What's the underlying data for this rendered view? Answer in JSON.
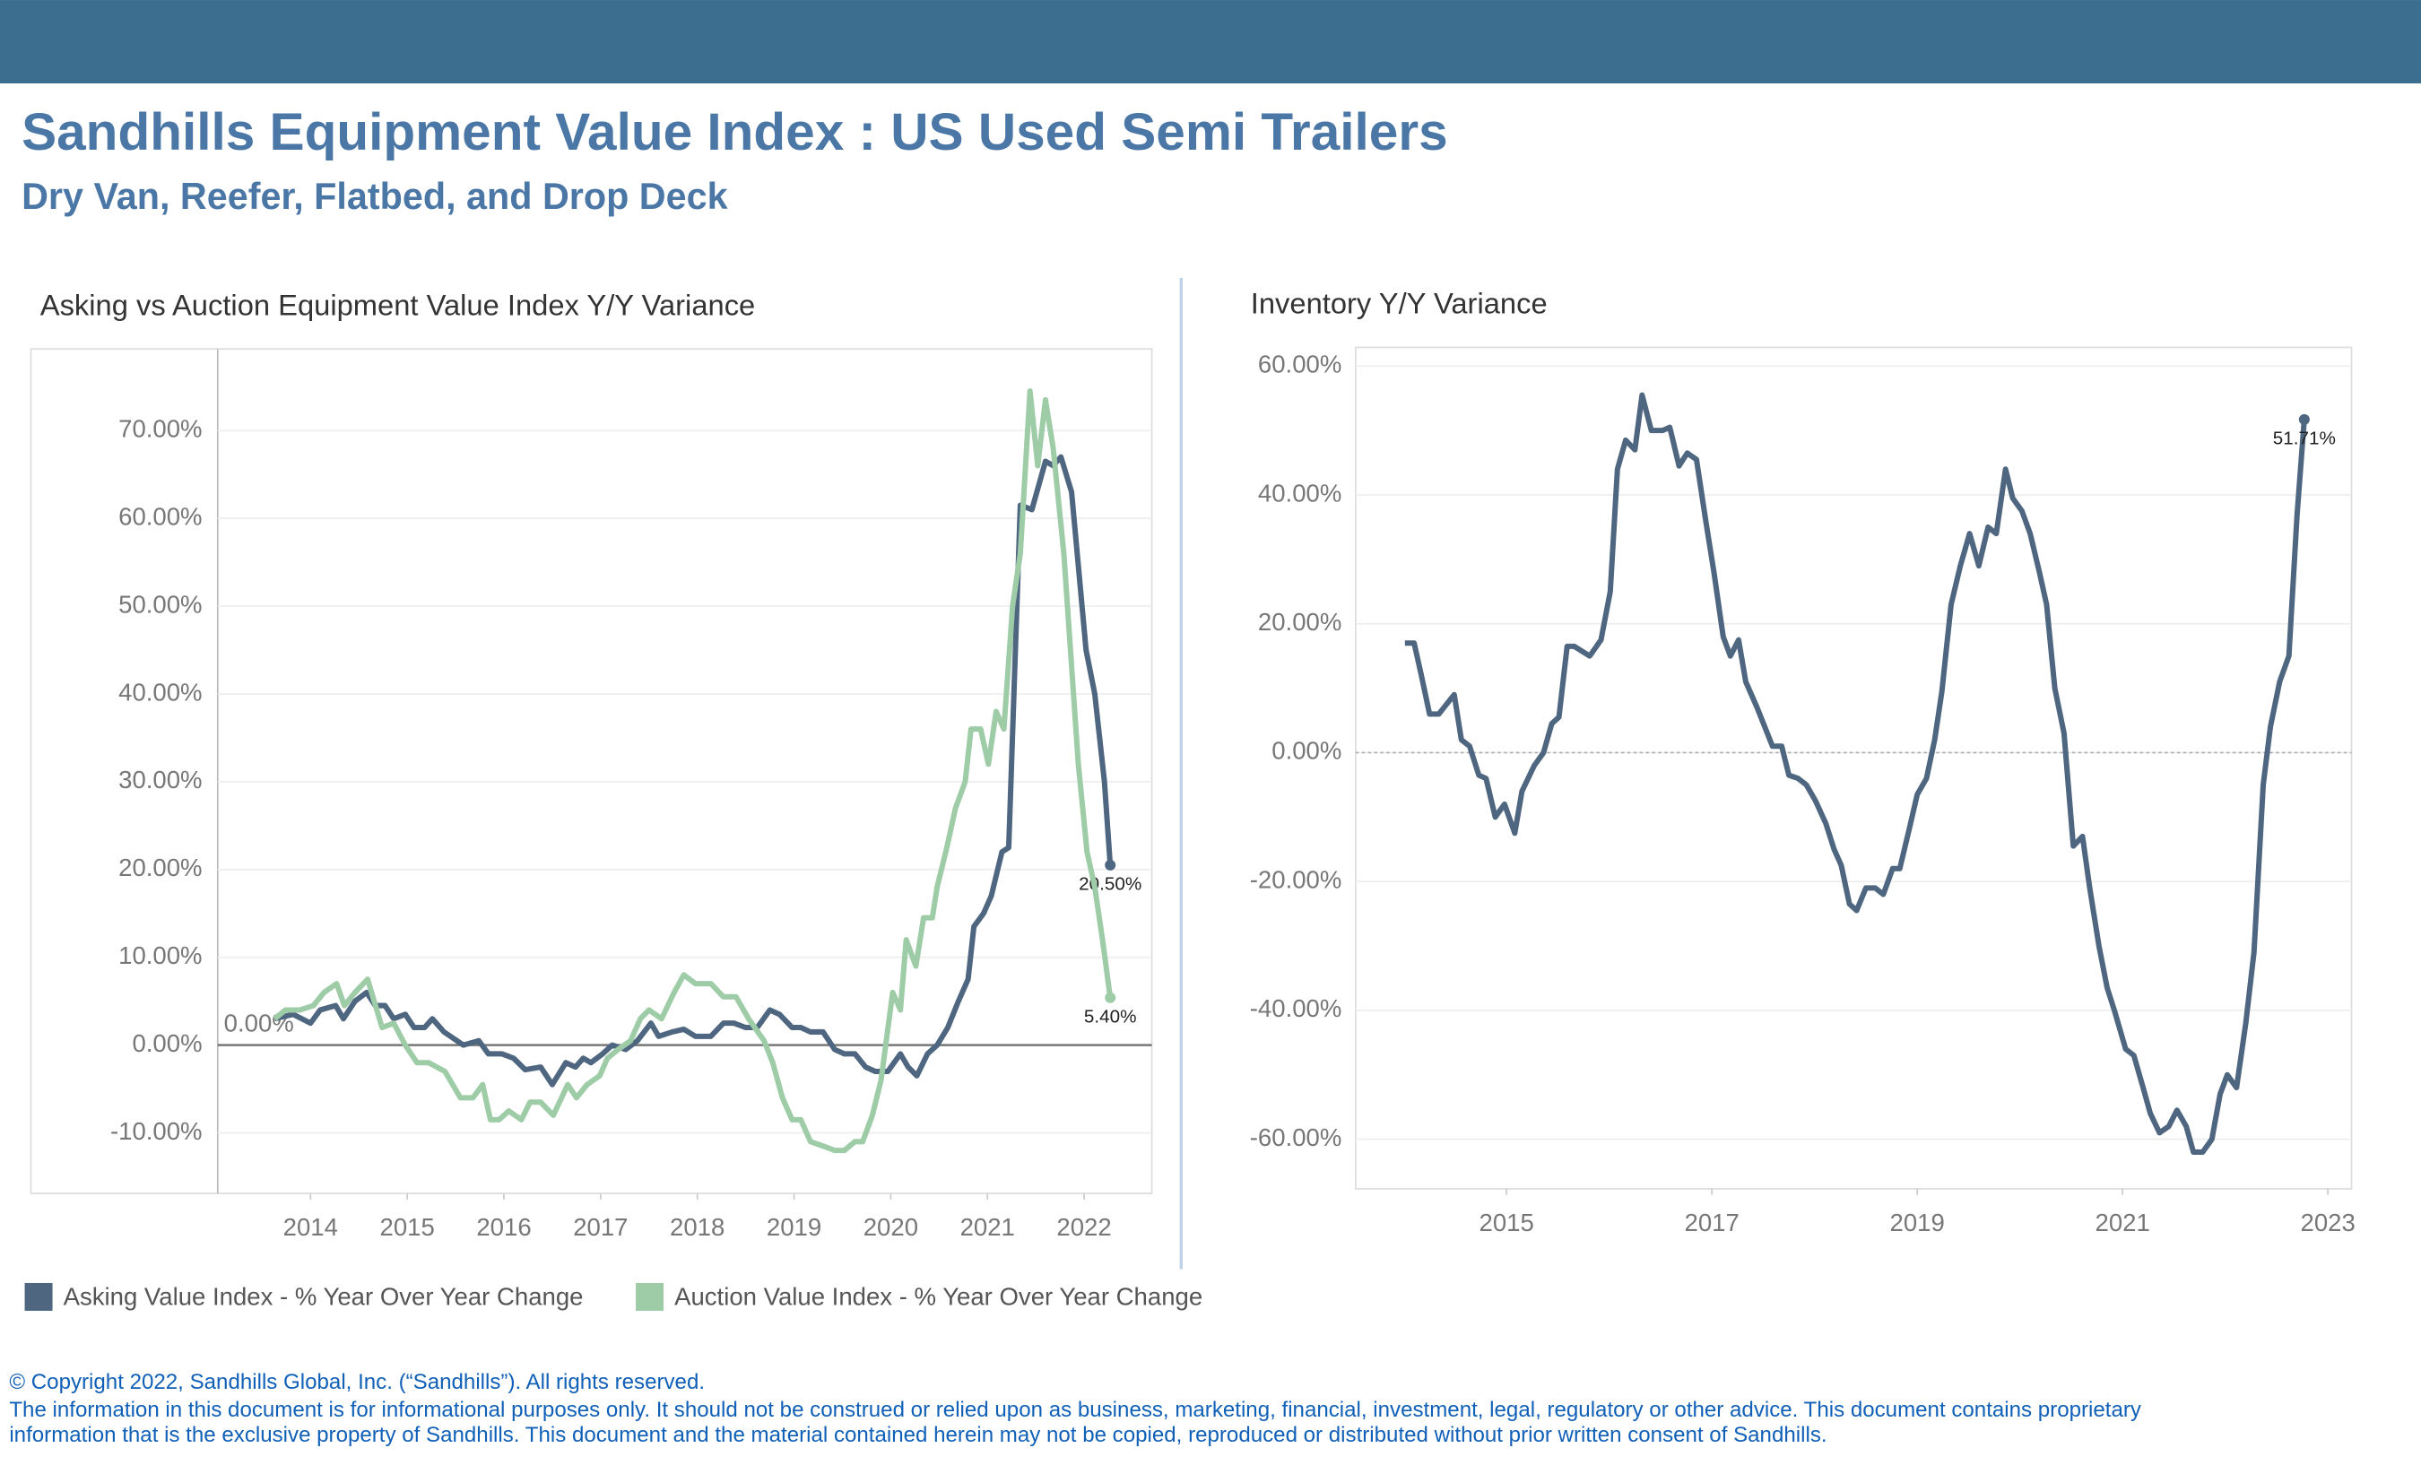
{
  "header": {
    "title": "Sandhills Equipment Value Index : US Used Semi Trailers",
    "subtitle": "Dry Van, Reefer, Flatbed, and Drop Deck"
  },
  "chart_data": [
    {
      "type": "line",
      "title": "Asking vs Auction Equipment Value Index Y/Y Variance",
      "xlim": [
        2013.04,
        2022.7
      ],
      "xticks": [
        2014,
        2015,
        2016,
        2017,
        2018,
        2019,
        2020,
        2021,
        2022
      ],
      "ylim": [
        -16.9,
        79.3
      ],
      "yticks": [
        {
          "value": -10,
          "label": "-10.00%"
        },
        {
          "value": 0,
          "label": "0.00%"
        },
        {
          "value": 10,
          "label": "10.00%"
        },
        {
          "value": 20,
          "label": "20.00%"
        },
        {
          "value": 30,
          "label": "30.00%"
        },
        {
          "value": 40,
          "label": "40.00%"
        },
        {
          "value": 50,
          "label": "50.00%"
        },
        {
          "value": 60,
          "label": "60.00%"
        },
        {
          "value": 70,
          "label": "70.00%"
        }
      ],
      "grid": true,
      "legend": "bottom",
      "reference_line": {
        "value": 0,
        "label": "0.00%",
        "style": "solid"
      },
      "series": [
        {
          "name": "Asking Value Index - % Year Over Year Change",
          "color": "#4e6680",
          "x": [
            2013.63,
            2013.82,
            2014.0,
            2014.1,
            2014.26,
            2014.34,
            2014.46,
            2014.58,
            2014.67,
            2014.77,
            2014.86,
            2014.98,
            2015.07,
            2015.18,
            2015.26,
            2015.38,
            2015.58,
            2015.74,
            2015.84,
            2015.98,
            2016.1,
            2016.22,
            2016.38,
            2016.5,
            2016.64,
            2016.74,
            2016.82,
            2016.9,
            2017.02,
            2017.12,
            2017.26,
            2017.38,
            2017.52,
            2017.6,
            2017.74,
            2017.86,
            2017.98,
            2018.14,
            2018.27,
            2018.38,
            2018.5,
            2018.62,
            2018.75,
            2018.85,
            2018.98,
            2019.07,
            2019.17,
            2019.3,
            2019.42,
            2019.52,
            2019.63,
            2019.74,
            2019.84,
            2019.97,
            2020.1,
            2020.18,
            2020.27,
            2020.38,
            2020.48,
            2020.59,
            2020.7,
            2020.8,
            2020.86,
            2020.96,
            2021.04,
            2021.15,
            2021.22,
            2021.34,
            2021.46,
            2021.6,
            2021.68,
            2021.76,
            2021.87,
            2022.02,
            2022.11,
            2022.21,
            2022.27
          ],
          "values": [
            3,
            3.5,
            2.5,
            4,
            4.5,
            3,
            5,
            6,
            4.5,
            4.5,
            3,
            3.5,
            2,
            2,
            3,
            1.5,
            0,
            0.5,
            -1,
            -1,
            -1.5,
            -2.8,
            -2.5,
            -4.5,
            -2,
            -2.5,
            -1.5,
            -2,
            -1,
            0,
            -0.5,
            0.5,
            2.5,
            1,
            1.5,
            1.8,
            1,
            1,
            2.5,
            2.5,
            2,
            2,
            4,
            3.5,
            2,
            2,
            1.5,
            1.5,
            -0.5,
            -1,
            -1,
            -2.5,
            -3,
            -3,
            -1,
            -2.5,
            -3.5,
            -1,
            0,
            2,
            5,
            7.5,
            13.5,
            15,
            17,
            22,
            22.5,
            61.5,
            61,
            66.5,
            66,
            67,
            63,
            45,
            40,
            30,
            20.5
          ],
          "value_labels": [
            null,
            null,
            null,
            null,
            null,
            null,
            null,
            null,
            null,
            null,
            null,
            null,
            null,
            null,
            null,
            null,
            null,
            null,
            null,
            null,
            null,
            null,
            null,
            null,
            null,
            null,
            null,
            null,
            null,
            null,
            null,
            null,
            null,
            null,
            null,
            null,
            null,
            null,
            null,
            null,
            null,
            null,
            null,
            null,
            null,
            null,
            null,
            null,
            null,
            null,
            null,
            null,
            null,
            null,
            null,
            null,
            null,
            null,
            null,
            null,
            null,
            null,
            null,
            null,
            null,
            null,
            null,
            null,
            null,
            null,
            null,
            null,
            null,
            null,
            null,
            null,
            "20.50%"
          ]
        },
        {
          "name": "Auction Value Index - % Year Over Year Change",
          "color": "#9dcca7",
          "x": [
            2013.63,
            2013.74,
            2013.89,
            2014.03,
            2014.14,
            2014.27,
            2014.35,
            2014.46,
            2014.59,
            2014.74,
            2014.86,
            2014.98,
            2015.1,
            2015.22,
            2015.39,
            2015.55,
            2015.68,
            2015.78,
            2015.86,
            2015.95,
            2016.05,
            2016.18,
            2016.27,
            2016.38,
            2016.51,
            2016.66,
            2016.75,
            2016.86,
            2016.99,
            2017.07,
            2017.18,
            2017.31,
            2017.41,
            2017.5,
            2017.63,
            2017.76,
            2017.86,
            2017.98,
            2018.14,
            2018.27,
            2018.4,
            2018.53,
            2018.69,
            2018.78,
            2018.88,
            2018.98,
            2019.07,
            2019.17,
            2019.3,
            2019.42,
            2019.52,
            2019.63,
            2019.71,
            2019.81,
            2019.9,
            2020.02,
            2020.1,
            2020.16,
            2020.26,
            2020.34,
            2020.43,
            2020.48,
            2020.58,
            2020.67,
            2020.77,
            2020.83,
            2020.93,
            2021.01,
            2021.09,
            2021.17,
            2021.26,
            2021.34,
            2021.44,
            2021.52,
            2021.6,
            2021.68,
            2021.79,
            2021.94,
            2022.03,
            2022.11,
            2022.19,
            2022.27
          ],
          "values": [
            3,
            4,
            4,
            4.5,
            6,
            7,
            4.5,
            6,
            7.5,
            2,
            2.5,
            0,
            -2,
            -2,
            -3,
            -6,
            -6,
            -4.5,
            -8.5,
            -8.5,
            -7.5,
            -8.5,
            -6.5,
            -6.5,
            -8,
            -4.5,
            -6,
            -4.5,
            -3.5,
            -1.5,
            -0.5,
            0.5,
            3,
            4,
            3,
            6,
            8,
            7,
            7,
            5.5,
            5.5,
            3,
            0.5,
            -2,
            -6,
            -8.5,
            -8.5,
            -11,
            -11.5,
            -12,
            -12,
            -11,
            -11,
            -8,
            -4,
            6,
            4,
            12,
            9,
            14.5,
            14.5,
            18,
            22.5,
            27,
            30,
            36,
            36,
            32,
            38,
            36,
            50,
            56,
            74.5,
            66,
            73.5,
            68,
            56,
            32,
            22,
            18,
            12,
            5.4
          ],
          "value_labels": [
            null,
            null,
            null,
            null,
            null,
            null,
            null,
            null,
            null,
            null,
            null,
            null,
            null,
            null,
            null,
            null,
            null,
            null,
            null,
            null,
            null,
            null,
            null,
            null,
            null,
            null,
            null,
            null,
            null,
            null,
            null,
            null,
            null,
            null,
            null,
            null,
            null,
            null,
            null,
            null,
            null,
            null,
            null,
            null,
            null,
            null,
            null,
            null,
            null,
            null,
            null,
            null,
            null,
            null,
            null,
            null,
            null,
            null,
            null,
            null,
            null,
            null,
            null,
            null,
            null,
            null,
            null,
            null,
            null,
            null,
            null,
            null,
            null,
            null,
            null,
            null,
            null,
            null,
            null,
            null,
            null,
            "5.40%"
          ]
        }
      ]
    },
    {
      "type": "line",
      "title": "Inventory Y/Y Variance",
      "xlim": [
        2013.53,
        2023.23
      ],
      "xticks": [
        2015,
        2017,
        2019,
        2021,
        2023
      ],
      "ylim": [
        -67.7,
        62.9
      ],
      "yticks": [
        {
          "value": -60,
          "label": "-60.00%"
        },
        {
          "value": -40,
          "label": "-40.00%"
        },
        {
          "value": -20,
          "label": "-20.00%"
        },
        {
          "value": 0,
          "label": "0.00%"
        },
        {
          "value": 20,
          "label": "20.00%"
        },
        {
          "value": 40,
          "label": "40.00%"
        },
        {
          "value": 60,
          "label": "60.00%"
        }
      ],
      "grid": true,
      "reference_line": {
        "value": 0,
        "style": "dotted"
      },
      "series": [
        {
          "color": "#4e6680",
          "x": [
            2014.01,
            2014.1,
            2014.17,
            2014.25,
            2014.34,
            2014.49,
            2014.56,
            2014.64,
            2014.73,
            2014.8,
            2014.89,
            2014.98,
            2015.08,
            2015.15,
            2015.27,
            2015.36,
            2015.44,
            2015.51,
            2015.59,
            2015.66,
            2015.81,
            2015.92,
            2016.01,
            2016.08,
            2016.16,
            2016.25,
            2016.32,
            2016.41,
            2016.52,
            2016.59,
            2016.68,
            2016.76,
            2016.85,
            2016.94,
            2017.02,
            2017.11,
            2017.18,
            2017.26,
            2017.33,
            2017.44,
            2017.59,
            2017.68,
            2017.75,
            2017.84,
            2017.92,
            2018.01,
            2018.11,
            2018.19,
            2018.26,
            2018.34,
            2018.41,
            2018.5,
            2018.59,
            2018.67,
            2018.76,
            2018.83,
            2018.92,
            2019.0,
            2019.09,
            2019.17,
            2019.24,
            2019.33,
            2019.42,
            2019.51,
            2019.6,
            2019.69,
            2019.77,
            2019.86,
            2019.93,
            2020.02,
            2020.1,
            2020.19,
            2020.26,
            2020.34,
            2020.43,
            2020.52,
            2020.61,
            2020.68,
            2020.77,
            2020.85,
            2020.92,
            2021.03,
            2021.11,
            2021.2,
            2021.27,
            2021.36,
            2021.45,
            2021.53,
            2021.62,
            2021.69,
            2021.78,
            2021.87,
            2021.95,
            2022.02,
            2022.11,
            2022.2,
            2022.28,
            2022.37,
            2022.44,
            2022.53,
            2022.62,
            2022.7,
            2022.77
          ],
          "values": [
            17,
            17,
            12,
            6,
            6,
            9,
            2,
            1,
            -3.5,
            -4,
            -10,
            -8,
            -12.5,
            -6,
            -2,
            0,
            4.5,
            5.5,
            16.5,
            16.5,
            15,
            17.5,
            25,
            44,
            48.5,
            47,
            55.5,
            50,
            50,
            50.5,
            44.5,
            46.5,
            45.5,
            36,
            28,
            18,
            15,
            17.5,
            11,
            7,
            1,
            1,
            -3.5,
            -4,
            -5,
            -7.5,
            -11,
            -15,
            -17.5,
            -23.5,
            -24.5,
            -21,
            -21,
            -22,
            -18,
            -18,
            -12,
            -6.5,
            -4,
            2,
            9.5,
            23,
            29,
            34,
            29,
            35,
            34,
            44,
            39.5,
            37.5,
            34,
            28,
            23,
            10,
            3,
            -14.5,
            -13,
            -21,
            -30,
            -36.5,
            -40,
            -46,
            -47,
            -52,
            -56,
            -59,
            -58,
            -55.5,
            -58,
            -62,
            -62,
            -60,
            -53,
            -50,
            -52,
            -42,
            -31,
            -5,
            4,
            11,
            15,
            37,
            51.71
          ],
          "value_labels": [
            null,
            null,
            null,
            null,
            null,
            null,
            null,
            null,
            null,
            null,
            null,
            null,
            null,
            null,
            null,
            null,
            null,
            null,
            null,
            null,
            null,
            null,
            null,
            null,
            null,
            null,
            null,
            null,
            null,
            null,
            null,
            null,
            null,
            null,
            null,
            null,
            null,
            null,
            null,
            null,
            null,
            null,
            null,
            null,
            null,
            null,
            null,
            null,
            null,
            null,
            null,
            null,
            null,
            null,
            null,
            null,
            null,
            null,
            null,
            null,
            null,
            null,
            null,
            null,
            null,
            null,
            null,
            null,
            null,
            null,
            null,
            null,
            null,
            null,
            null,
            null,
            null,
            null,
            null,
            null,
            null,
            null,
            null,
            null,
            null,
            null,
            null,
            null,
            null,
            null,
            null,
            null,
            null,
            null,
            null,
            null,
            null,
            null,
            null,
            null,
            null,
            null,
            "51.71%"
          ]
        }
      ]
    }
  ],
  "footer": {
    "copyright": "© Copyright 2022, Sandhills Global, Inc. (“Sandhills”). All rights reserved.",
    "disclaimer": [
      "The information in this document is for informational purposes only.  It should not be construed or relied upon as business, marketing, financial, investment, legal, regulatory or other advice. This document contains proprietary",
      "information that is the exclusive property of Sandhills. This document and the material contained herein may not be copied, reproduced or distributed without prior written consent of Sandhills."
    ]
  }
}
